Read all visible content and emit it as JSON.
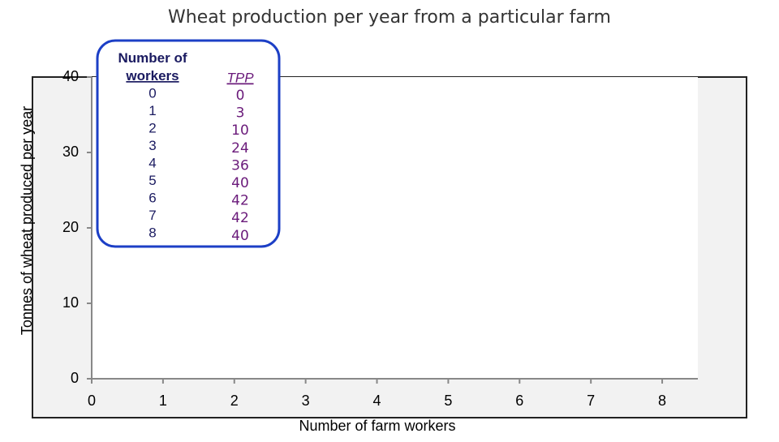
{
  "chart_data": {
    "type": "line",
    "title": "Wheat production per year from a particular farm",
    "x_label": "Number of farm workers",
    "y_label": "Tonnes of wheat produced per year",
    "xlim": [
      0,
      8.5
    ],
    "xticks": [
      0,
      1,
      2,
      3,
      4,
      5,
      6,
      7,
      8
    ],
    "ylim": [
      0,
      40
    ],
    "yticks": [
      0,
      10,
      20,
      30,
      40
    ]
  },
  "table": {
    "headers": [
      "Number of workers",
      "TPP"
    ],
    "workers": [
      0,
      1,
      2,
      3,
      4,
      5,
      6,
      7,
      8
    ],
    "tpp": [
      0,
      3,
      10,
      24,
      36,
      40,
      42,
      42,
      40
    ]
  }
}
